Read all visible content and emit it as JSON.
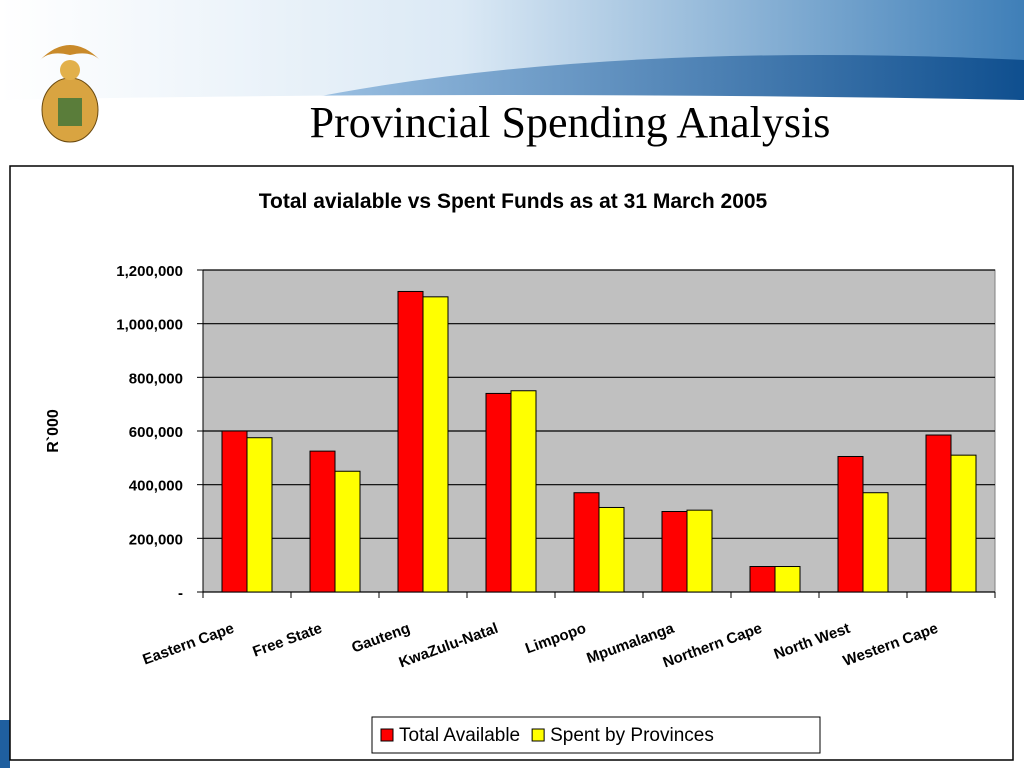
{
  "slide_title": "Provincial Spending Analysis",
  "chart_data": {
    "type": "bar",
    "title": "Total avialable vs Spent Funds as at 31 March 2005",
    "y_label": "R`000",
    "categories": [
      "Eastern Cape",
      "Free State",
      "Gauteng",
      "KwaZulu-Natal",
      "Limpopo",
      "Mpumalanga",
      "Northern Cape",
      "North West",
      "Western Cape"
    ],
    "series": [
      {
        "name": "Total Available",
        "color": "#ff0000",
        "values": [
          600000,
          525000,
          1120000,
          740000,
          370000,
          300000,
          95000,
          505000,
          585000
        ]
      },
      {
        "name": "Spent by  Provinces",
        "color": "#ffff00",
        "values": [
          575000,
          450000,
          1100000,
          750000,
          315000,
          305000,
          95000,
          370000,
          510000
        ]
      }
    ],
    "ylim": [
      0,
      1200000
    ],
    "yticks": [
      {
        "value": 0,
        "label": "-"
      },
      {
        "value": 200000,
        "label": "200,000"
      },
      {
        "value": 400000,
        "label": "400,000"
      },
      {
        "value": 600000,
        "label": "600,000"
      },
      {
        "value": 800000,
        "label": "800,000"
      },
      {
        "value": 1000000,
        "label": "1,000,000"
      },
      {
        "value": 1200000,
        "label": "1,200,000"
      }
    ],
    "grid": true,
    "legend": "bottom"
  }
}
